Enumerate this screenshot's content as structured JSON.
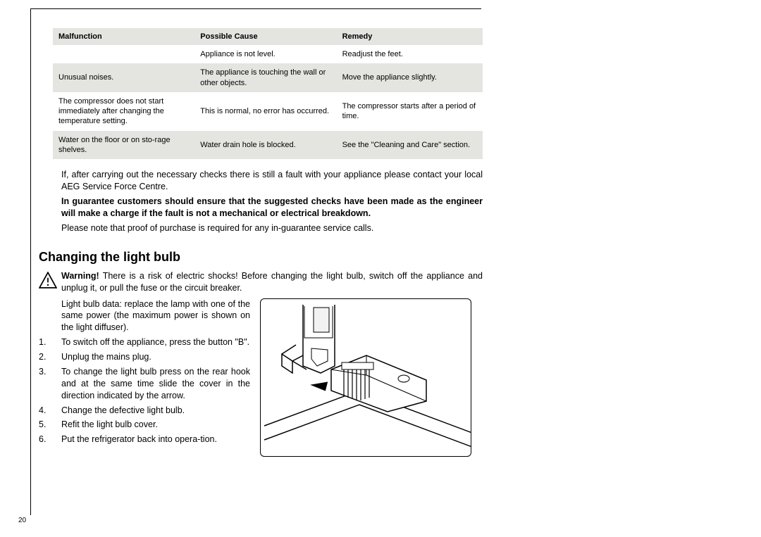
{
  "table": {
    "headers": [
      "Malfunction",
      "Possible Cause",
      "Remedy"
    ],
    "rows": [
      {
        "c1": "",
        "c2": "Appliance is not level.",
        "c3": "Readjust the feet.",
        "alt": false
      },
      {
        "c1": "Unusual noises.",
        "c2": "The appliance is touching the wall or other objects.",
        "c3": "Move the appliance slightly.",
        "alt": true
      },
      {
        "c1": "The compressor does not start immediately after changing the temperature setting.",
        "c2": "This is normal, no error has occurred.",
        "c3": "The compressor starts after a period of time.",
        "alt": false
      },
      {
        "c1": "Water on the floor or on sto-rage shelves.",
        "c2": "Water drain hole is blocked.",
        "c3": "See the \"Cleaning and Care\" section.",
        "alt": true
      }
    ]
  },
  "para1": "If, after carrying out the necessary checks there is still a fault with your appliance please contact your local AEG Service Force Centre.",
  "para2": "In guarantee customers should ensure that the suggested checks have been made as the engineer will make a charge if the fault is not a mechanical or electrical breakdown.",
  "para3": "Please note that proof of purchase is required for any in-guarantee service calls.",
  "section_title": "Changing the light bulb",
  "warning_bold": "Warning!",
  "warning_text": " There is a risk of electric shocks! Before changing the light bulb, switch off the appliance and unplug it, or pull the fuse or the circuit breaker.",
  "intro": "Light bulb data: replace the lamp with one of the same power (the maximum power is shown on the light diffuser).",
  "steps": [
    {
      "n": "1.",
      "t": "To switch off the appliance, press the button \"B\"."
    },
    {
      "n": "2.",
      "t": "Unplug the mains plug."
    },
    {
      "n": "3.",
      "t": "To change the light bulb press on the rear hook and at the same time slide the cover in the direction indicated by the arrow."
    },
    {
      "n": "4.",
      "t": "Change the defective light bulb."
    },
    {
      "n": "5.",
      "t": "Refit the light bulb cover."
    },
    {
      "n": "6.",
      "t": "Put the refrigerator back into opera-tion."
    }
  ],
  "page_number": "20",
  "colors": {
    "table_bg": "#e4e4e0",
    "text": "#000000",
    "page_bg": "#ffffff"
  }
}
